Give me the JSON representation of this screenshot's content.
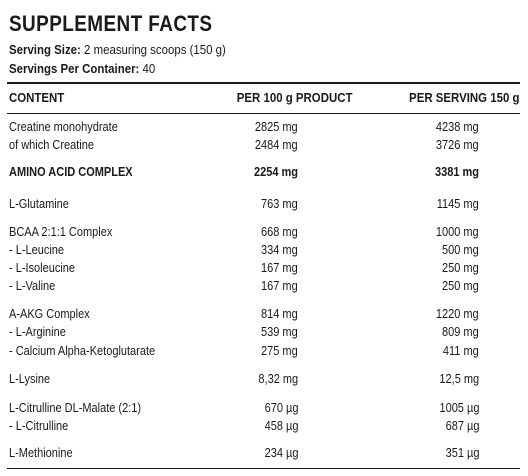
{
  "title": "SUPPLEMENT FACTS",
  "serving_size": {
    "label": "Serving Size:",
    "value": "2 measuring scoops (150 g)"
  },
  "servings_per_container": {
    "label": "Servings Per Container:",
    "value": "40"
  },
  "columns": {
    "content": "CONTENT",
    "per_100g": "PER 100 g PRODUCT",
    "per_serving": "PER SERVING 150 g"
  },
  "rows": [
    {
      "name": "Creatine monohydrate",
      "per_100g": "2825 mg",
      "per_serving": "4238 mg"
    },
    {
      "name": "of which Creatine",
      "per_100g": "2484 mg",
      "per_serving": "3726 mg"
    },
    {
      "name": "AMINO ACID COMPLEX",
      "per_100g": "2254 mg",
      "per_serving": "3381 mg"
    },
    {
      "name": "L-Glutamine",
      "per_100g": "763 mg",
      "per_serving": "1145 mg"
    },
    {
      "name": "BCAA 2:1:1 Complex",
      "per_100g": "668 mg",
      "per_serving": "1000 mg"
    },
    {
      "name": "- L-Leucine",
      "per_100g": "334 mg",
      "per_serving": "500 mg"
    },
    {
      "name": "- L-Isoleucine",
      "per_100g": "167 mg",
      "per_serving": "250 mg"
    },
    {
      "name": "- L-Valine",
      "per_100g": "167 mg",
      "per_serving": "250 mg"
    },
    {
      "name": "A-AKG Complex",
      "per_100g": "814 mg",
      "per_serving": "1220 mg"
    },
    {
      "name": "- L-Arginine",
      "per_100g": "539 mg",
      "per_serving": "809 mg"
    },
    {
      "name": "- Calcium Alpha-Ketoglutarate",
      "per_100g": "275 mg",
      "per_serving": "411 mg"
    },
    {
      "name": "L-Lysine",
      "per_100g": "8,32 mg",
      "per_serving": "12,5 mg"
    },
    {
      "name": "L-Citrulline DL-Malate (2:1)",
      "per_100g": "670 µg",
      "per_serving": "1005 µg"
    },
    {
      "name": "- L-Citrulline",
      "per_100g": "458 µg",
      "per_serving": "687 µg"
    },
    {
      "name": "L-Methionine",
      "per_100g": "234 µg",
      "per_serving": "351 µg"
    }
  ]
}
